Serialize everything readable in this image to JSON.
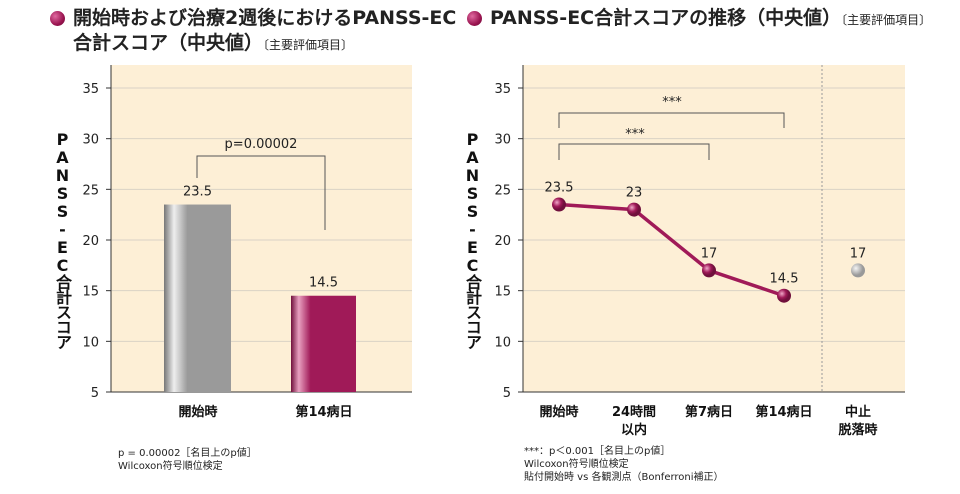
{
  "colors": {
    "plot_bg": "#fdefd6",
    "bar_gray": "#9a9a9a",
    "accent": "#a01a58",
    "grid": "#d9d2c5"
  },
  "chart_data": [
    {
      "type": "bar",
      "title": "開始時および治療2週後におけるPANSS-EC合計スコア（中央値）",
      "title_line1": "開始時および治療2週後におけるPANSS-EC",
      "title_line2": "合計スコア（中央値）",
      "subtitle": "〔主要評価項目〕",
      "ylabel": "PANSS-EC合計スコア",
      "ylim": [
        5,
        35
      ],
      "yticks": [
        5,
        10,
        15,
        20,
        25,
        30,
        35
      ],
      "categories": [
        "開始時",
        "第14病日"
      ],
      "values": [
        23.5,
        14.5
      ],
      "value_labels": [
        "23.5",
        "14.5"
      ],
      "bar_colors": [
        "#9a9a9a",
        "#a01a58"
      ],
      "grid": true,
      "annotation": "p=0.00002",
      "notes": [
        "p = 0.00002［名目上のp値］",
        "Wilcoxon符号順位検定"
      ]
    },
    {
      "type": "line",
      "title": "PANSS-EC合計スコアの推移（中央値）",
      "subtitle": "〔主要評価項目〕",
      "ylabel": "PANSS-EC合計スコア",
      "ylim": [
        5,
        35
      ],
      "yticks": [
        5,
        10,
        15,
        20,
        25,
        30,
        35
      ],
      "categories": [
        "開始時",
        "24時間以内",
        "第7病日",
        "第14病日"
      ],
      "category_lines": [
        [
          "開始時"
        ],
        [
          "24時間",
          "以内"
        ],
        [
          "第7病日"
        ],
        [
          "第14病日"
        ]
      ],
      "values": [
        23.5,
        23,
        17,
        14.5
      ],
      "value_labels": [
        "23.5",
        "23",
        "17",
        "14.5"
      ],
      "separate_point": {
        "category": "中止脱落時",
        "lines": [
          "中止",
          "脱落時"
        ],
        "value": 17,
        "label": "17"
      },
      "grid": true,
      "annotations": [
        "***",
        "***"
      ],
      "notes": [
        "***：p＜0.001［名目上のp値］",
        "Wilcoxon符号順位検定",
        "貼付開始時 vs 各観測点（Bonferroni補正）"
      ]
    }
  ]
}
